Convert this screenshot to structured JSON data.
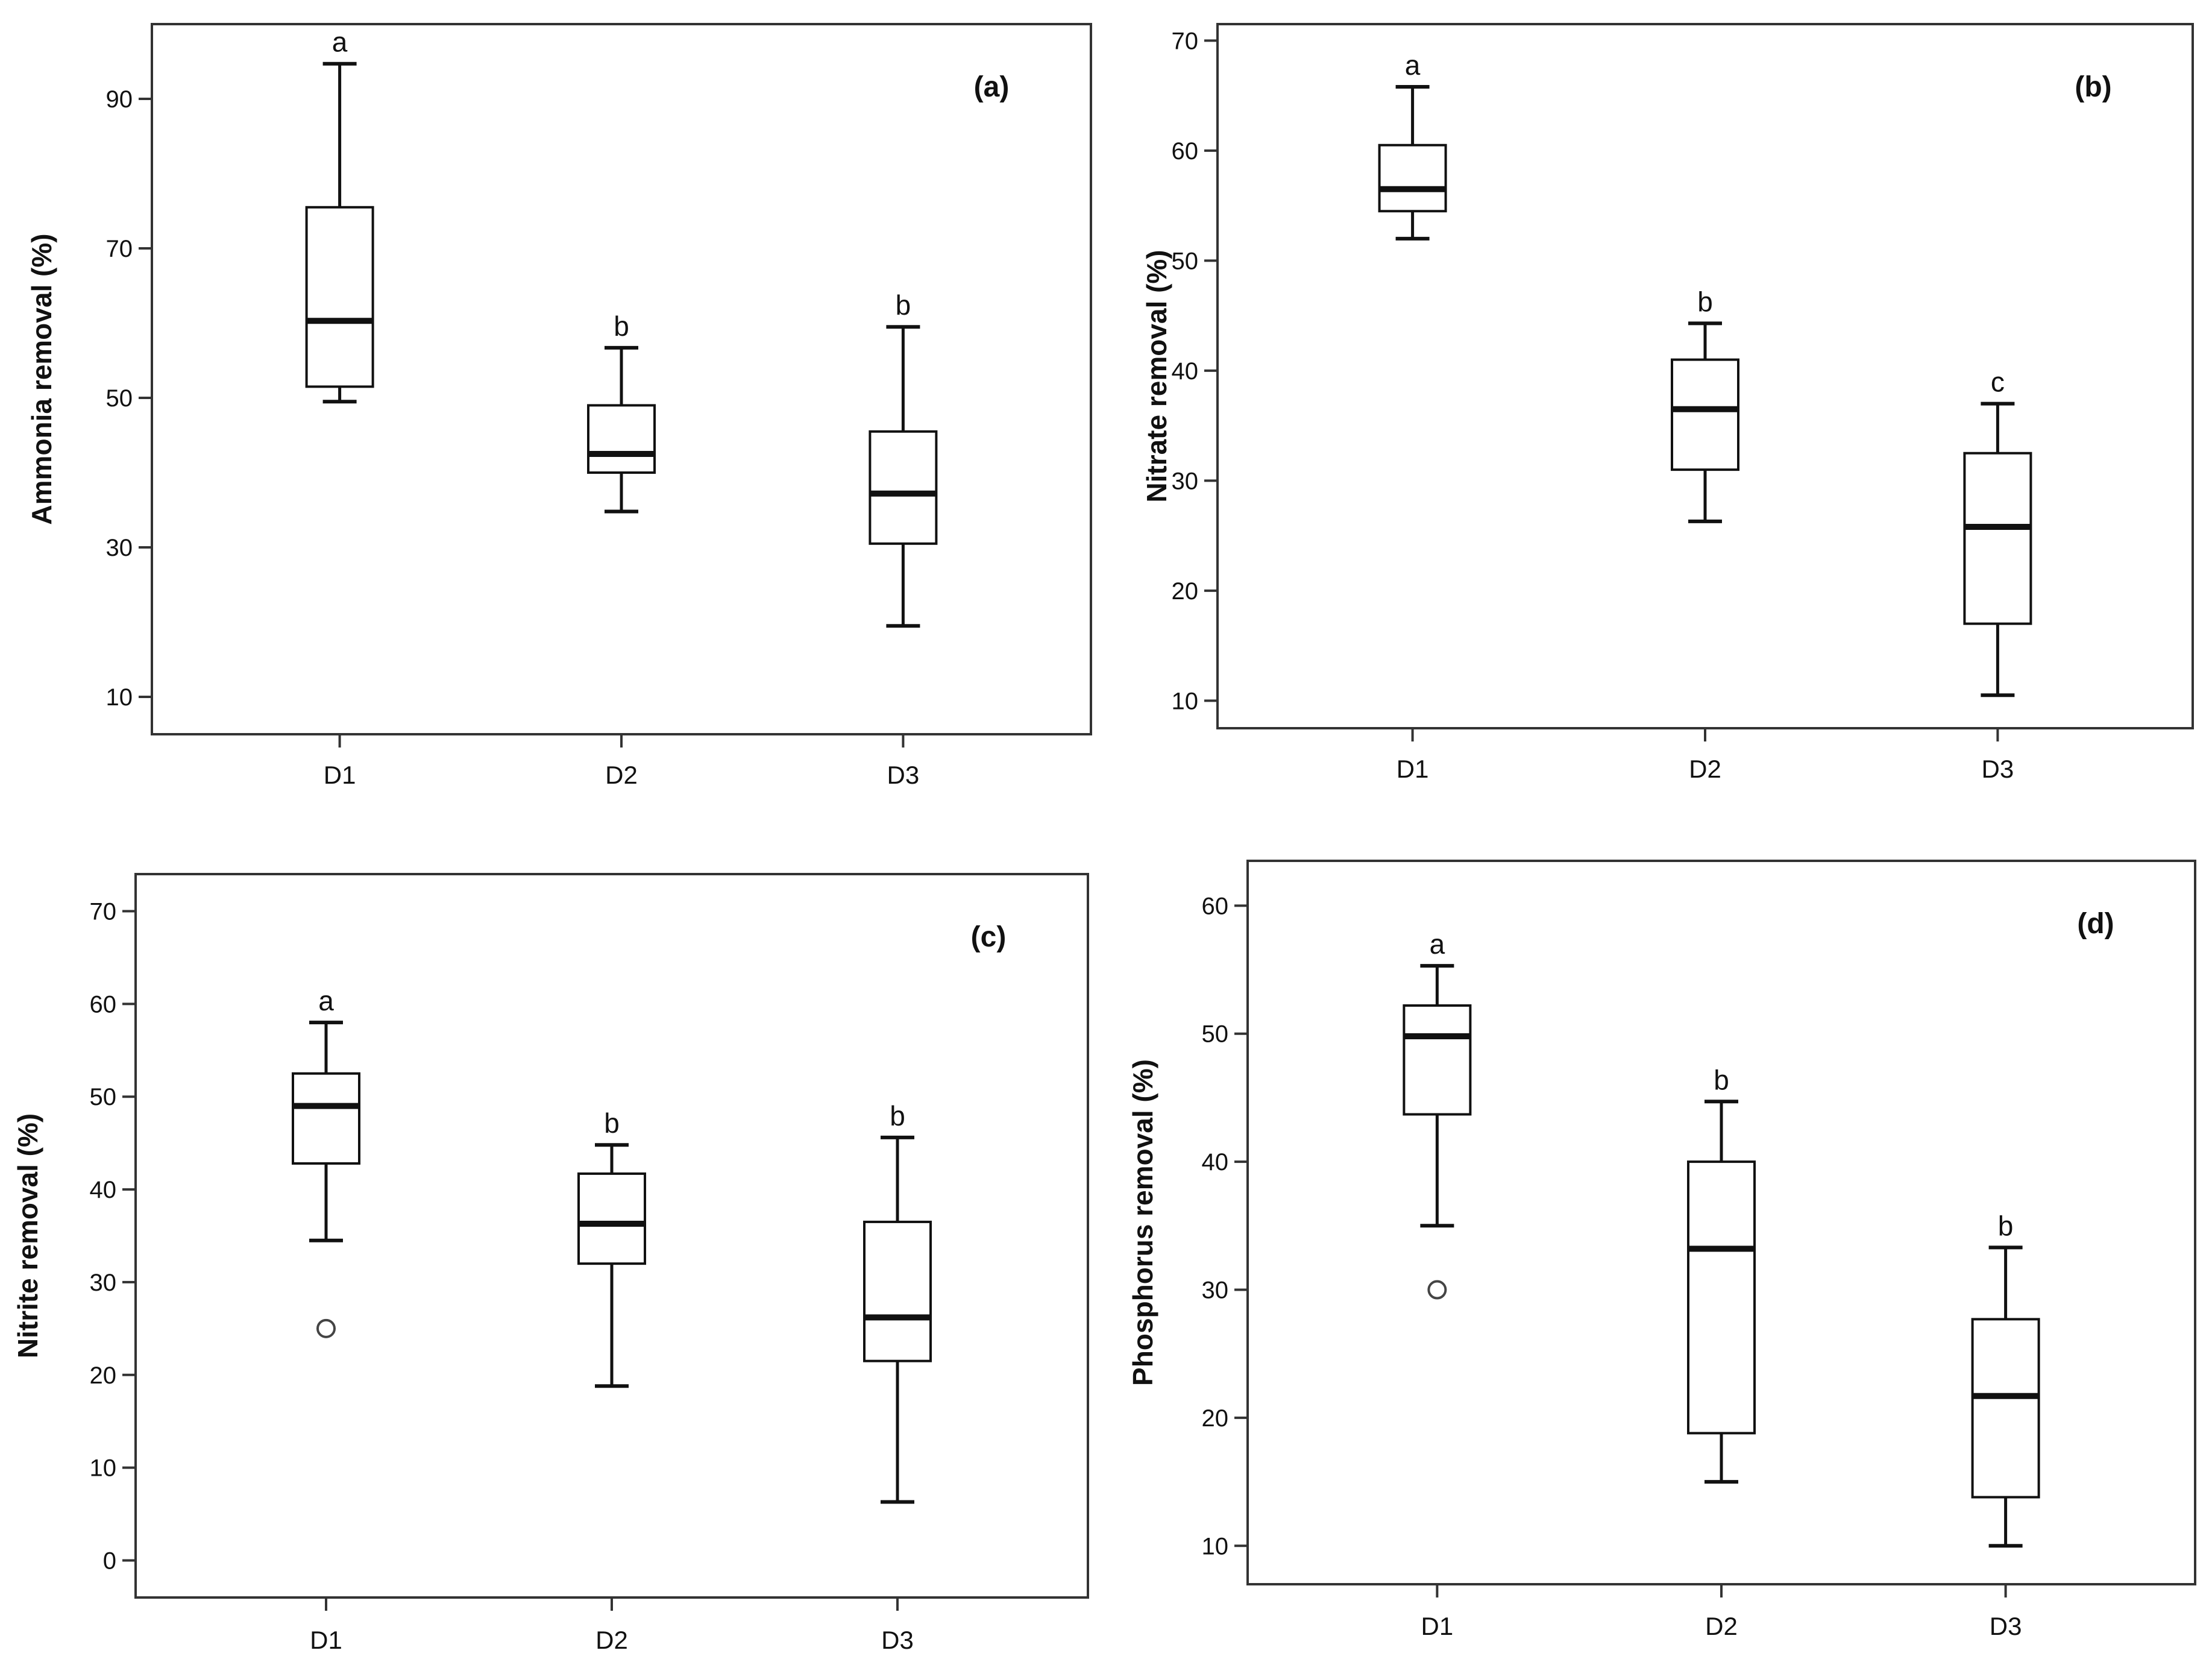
{
  "chart_data": [
    {
      "type": "boxplot",
      "panel_label": "(a)",
      "ylabel": "Ammonia removal (%)",
      "categories": [
        "D1",
        "D2",
        "D3"
      ],
      "yticks": [
        10,
        30,
        50,
        70,
        90
      ],
      "ylim": [
        5,
        100
      ],
      "boxes": [
        {
          "category": "D1",
          "whisker_low": 49.5,
          "q1": 51.5,
          "median": 60.3,
          "q3": 75.5,
          "whisker_high": 94.7,
          "sig": "a",
          "outliers": []
        },
        {
          "category": "D2",
          "whisker_low": 34.8,
          "q1": 40.0,
          "median": 42.5,
          "q3": 49.0,
          "whisker_high": 56.7,
          "sig": "b",
          "outliers": []
        },
        {
          "category": "D3",
          "whisker_low": 19.5,
          "q1": 30.5,
          "median": 37.2,
          "q3": 45.5,
          "whisker_high": 59.5,
          "sig": "b",
          "outliers": []
        }
      ]
    },
    {
      "type": "boxplot",
      "panel_label": "(b)",
      "ylabel": "Nitrate removal (%)",
      "categories": [
        "D1",
        "D2",
        "D3"
      ],
      "yticks": [
        10,
        20,
        30,
        40,
        50,
        60,
        70
      ],
      "ylim": [
        7.5,
        71.5
      ],
      "boxes": [
        {
          "category": "D1",
          "whisker_low": 52.0,
          "q1": 54.5,
          "median": 56.5,
          "q3": 60.5,
          "whisker_high": 65.8,
          "sig": "a",
          "outliers": []
        },
        {
          "category": "D2",
          "whisker_low": 26.3,
          "q1": 31.0,
          "median": 36.5,
          "q3": 41.0,
          "whisker_high": 44.3,
          "sig": "b",
          "outliers": []
        },
        {
          "category": "D3",
          "whisker_low": 10.5,
          "q1": 17.0,
          "median": 25.8,
          "q3": 32.5,
          "whisker_high": 37.0,
          "sig": "c",
          "outliers": []
        }
      ]
    },
    {
      "type": "boxplot",
      "panel_label": "(c)",
      "ylabel": "Nitrite removal (%)",
      "categories": [
        "D1",
        "D2",
        "D3"
      ],
      "yticks": [
        0,
        10,
        20,
        30,
        40,
        50,
        60,
        70
      ],
      "ylim": [
        -4,
        74
      ],
      "boxes": [
        {
          "category": "D1",
          "whisker_low": 34.5,
          "q1": 42.8,
          "median": 49.0,
          "q3": 52.5,
          "whisker_high": 58.0,
          "sig": "a",
          "outliers": [
            25.0
          ]
        },
        {
          "category": "D2",
          "whisker_low": 18.8,
          "q1": 32.0,
          "median": 36.3,
          "q3": 41.7,
          "whisker_high": 44.8,
          "sig": "b",
          "outliers": []
        },
        {
          "category": "D3",
          "whisker_low": 6.3,
          "q1": 21.5,
          "median": 26.2,
          "q3": 36.5,
          "whisker_high": 45.6,
          "sig": "b",
          "outliers": []
        }
      ]
    },
    {
      "type": "boxplot",
      "panel_label": "(d)",
      "ylabel": "Phosphorus removal (%)",
      "categories": [
        "D1",
        "D2",
        "D3"
      ],
      "yticks": [
        10,
        20,
        30,
        40,
        50,
        60
      ],
      "ylim": [
        7,
        63.5
      ],
      "boxes": [
        {
          "category": "D1",
          "whisker_low": 35.0,
          "q1": 43.7,
          "median": 49.8,
          "q3": 52.2,
          "whisker_high": 55.3,
          "sig": "a",
          "outliers": [
            30.0
          ]
        },
        {
          "category": "D2",
          "whisker_low": 15.0,
          "q1": 18.8,
          "median": 33.2,
          "q3": 40.0,
          "whisker_high": 44.7,
          "sig": "b",
          "outliers": []
        },
        {
          "category": "D3",
          "whisker_low": 10.0,
          "q1": 13.8,
          "median": 21.7,
          "q3": 27.7,
          "whisker_high": 33.3,
          "sig": "b",
          "outliers": []
        }
      ]
    }
  ]
}
